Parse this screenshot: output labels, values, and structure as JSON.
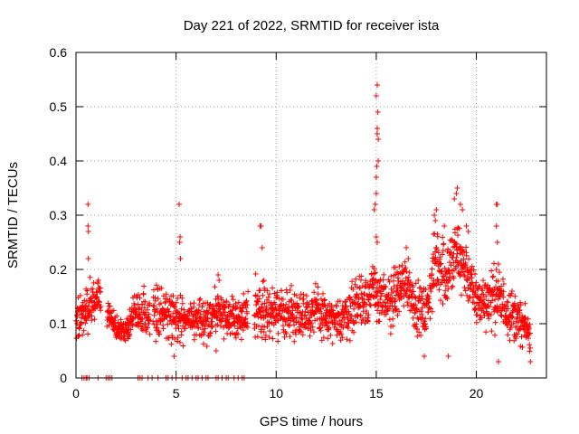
{
  "chart_data": {
    "type": "scatter",
    "title": "Day 221 of 2022, SRMTID for receiver ista",
    "xlabel": "GPS time / hours",
    "ylabel": "SRMTID / TECUs",
    "xlim": [
      0,
      23.5
    ],
    "ylim": [
      0,
      0.6
    ],
    "xticks": [
      0,
      5,
      10,
      15,
      20
    ],
    "yticks": [
      0,
      0.1,
      0.2,
      0.3,
      0.4,
      0.5,
      0.6
    ],
    "ytick_labels": [
      "0",
      "0.1",
      "0.2",
      "0.3",
      "0.4",
      "0.5",
      "0.6"
    ],
    "grid": true,
    "marker": "plus",
    "color": "#ff0000",
    "series": [
      {
        "name": "SRMTID",
        "profile": [
          {
            "t": 0.0,
            "mean": 0.1,
            "spread": 0.035
          },
          {
            "t": 0.3,
            "mean": 0.12,
            "spread": 0.04
          },
          {
            "t": 0.6,
            "mean": 0.13,
            "spread": 0.04
          },
          {
            "t": 0.8,
            "mean": 0.14,
            "spread": 0.03
          },
          {
            "t": 1.1,
            "mean": 0.15,
            "spread": 0.03
          },
          {
            "t": 2.0,
            "mean": 0.09,
            "spread": 0.02
          },
          {
            "t": 2.5,
            "mean": 0.09,
            "spread": 0.02
          },
          {
            "t": 3.0,
            "mean": 0.12,
            "spread": 0.03
          },
          {
            "t": 4.0,
            "mean": 0.12,
            "spread": 0.04
          },
          {
            "t": 5.0,
            "mean": 0.11,
            "spread": 0.04
          },
          {
            "t": 6.0,
            "mean": 0.1,
            "spread": 0.03
          },
          {
            "t": 7.0,
            "mean": 0.12,
            "spread": 0.04
          },
          {
            "t": 8.0,
            "mean": 0.11,
            "spread": 0.03
          },
          {
            "t": 9.0,
            "mean": 0.13,
            "spread": 0.045
          },
          {
            "t": 10.0,
            "mean": 0.12,
            "spread": 0.04
          },
          {
            "t": 11.0,
            "mean": 0.12,
            "spread": 0.04
          },
          {
            "t": 12.0,
            "mean": 0.12,
            "spread": 0.04
          },
          {
            "t": 13.0,
            "mean": 0.1,
            "spread": 0.03
          },
          {
            "t": 14.0,
            "mean": 0.14,
            "spread": 0.05
          },
          {
            "t": 15.0,
            "mean": 0.16,
            "spread": 0.05
          },
          {
            "t": 15.5,
            "mean": 0.13,
            "spread": 0.04
          },
          {
            "t": 16.0,
            "mean": 0.16,
            "spread": 0.05
          },
          {
            "t": 16.5,
            "mean": 0.18,
            "spread": 0.04
          },
          {
            "t": 17.0,
            "mean": 0.13,
            "spread": 0.04
          },
          {
            "t": 17.5,
            "mean": 0.12,
            "spread": 0.04
          },
          {
            "t": 18.0,
            "mean": 0.22,
            "spread": 0.06
          },
          {
            "t": 18.5,
            "mean": 0.19,
            "spread": 0.06
          },
          {
            "t": 19.0,
            "mean": 0.23,
            "spread": 0.06
          },
          {
            "t": 19.5,
            "mean": 0.2,
            "spread": 0.05
          },
          {
            "t": 20.0,
            "mean": 0.14,
            "spread": 0.04
          },
          {
            "t": 21.0,
            "mean": 0.15,
            "spread": 0.05
          },
          {
            "t": 22.0,
            "mean": 0.11,
            "spread": 0.04
          },
          {
            "t": 22.7,
            "mean": 0.08,
            "spread": 0.025
          }
        ],
        "gaps": [
          [
            1.25,
            1.55
          ],
          [
            3.7,
            3.85
          ],
          [
            8.6,
            8.9
          ]
        ],
        "spikes": [
          {
            "x": 0.6,
            "y": 0.32
          },
          {
            "x": 0.6,
            "y": 0.28
          },
          {
            "x": 0.62,
            "y": 0.27
          },
          {
            "x": 0.62,
            "y": 0.22
          },
          {
            "x": 5.15,
            "y": 0.32
          },
          {
            "x": 5.2,
            "y": 0.26
          },
          {
            "x": 5.18,
            "y": 0.25
          },
          {
            "x": 5.22,
            "y": 0.22
          },
          {
            "x": 7.1,
            "y": 0.19
          },
          {
            "x": 7.15,
            "y": 0.18
          },
          {
            "x": 9.2,
            "y": 0.28
          },
          {
            "x": 9.25,
            "y": 0.28
          },
          {
            "x": 9.3,
            "y": 0.24
          },
          {
            "x": 14.9,
            "y": 0.31
          },
          {
            "x": 14.95,
            "y": 0.32
          },
          {
            "x": 15.0,
            "y": 0.34
          },
          {
            "x": 15.0,
            "y": 0.37
          },
          {
            "x": 15.02,
            "y": 0.39
          },
          {
            "x": 15.05,
            "y": 0.45
          },
          {
            "x": 15.05,
            "y": 0.46
          },
          {
            "x": 15.08,
            "y": 0.49
          },
          {
            "x": 15.0,
            "y": 0.52
          },
          {
            "x": 15.05,
            "y": 0.54
          },
          {
            "x": 15.1,
            "y": 0.44
          },
          {
            "x": 15.1,
            "y": 0.4
          },
          {
            "x": 15.0,
            "y": 0.26
          },
          {
            "x": 15.05,
            "y": 0.25
          },
          {
            "x": 16.5,
            "y": 0.24
          },
          {
            "x": 16.6,
            "y": 0.22
          },
          {
            "x": 17.9,
            "y": 0.3
          },
          {
            "x": 17.95,
            "y": 0.29
          },
          {
            "x": 18.0,
            "y": 0.31
          },
          {
            "x": 18.4,
            "y": 0.28
          },
          {
            "x": 18.9,
            "y": 0.33
          },
          {
            "x": 19.0,
            "y": 0.34
          },
          {
            "x": 19.05,
            "y": 0.35
          },
          {
            "x": 19.2,
            "y": 0.32
          },
          {
            "x": 19.3,
            "y": 0.31
          },
          {
            "x": 19.5,
            "y": 0.28
          },
          {
            "x": 19.6,
            "y": 0.27
          },
          {
            "x": 18.6,
            "y": 0.04
          },
          {
            "x": 21.0,
            "y": 0.32
          },
          {
            "x": 21.05,
            "y": 0.32
          },
          {
            "x": 21.0,
            "y": 0.28
          },
          {
            "x": 21.05,
            "y": 0.25
          },
          {
            "x": 21.0,
            "y": 0.2
          },
          {
            "x": 21.1,
            "y": 0.21
          },
          {
            "x": 4.9,
            "y": 0.04
          },
          {
            "x": 7.0,
            "y": 0.05
          },
          {
            "x": 17.4,
            "y": 0.04
          },
          {
            "x": 21.1,
            "y": 0.03
          },
          {
            "x": 22.7,
            "y": 0.03
          }
        ],
        "zero_values_x": [
          0.3,
          0.4,
          0.5,
          0.55,
          0.65,
          1.1,
          1.5,
          1.6,
          1.7,
          1.8,
          3.1,
          3.2,
          3.3,
          3.6,
          3.8,
          4.1,
          4.5,
          4.6,
          4.8,
          5.0,
          5.3,
          5.5,
          5.6,
          5.8,
          6.0,
          6.1,
          6.3,
          6.5,
          6.6,
          7.0,
          7.1,
          7.3,
          7.5,
          7.6,
          7.9,
          8.1,
          8.3,
          8.4
        ]
      }
    ]
  }
}
